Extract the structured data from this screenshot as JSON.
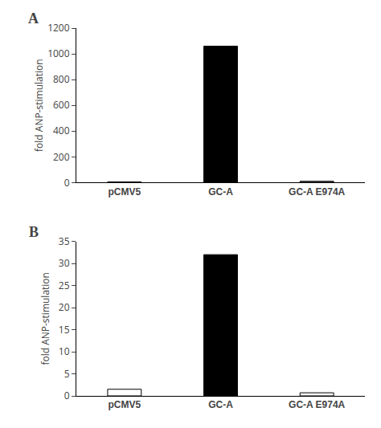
{
  "chart_data": [
    {
      "type": "bar",
      "title": "A",
      "categories": [
        "pCMV5",
        "GC-A",
        "GC-A E974A"
      ],
      "values": [
        5,
        1060,
        10
      ],
      "colors": [
        "#555555",
        "black",
        "#555555"
      ],
      "ylabel": "fold ANP-stimulation",
      "ylim": [
        0,
        1200
      ],
      "yticks": [
        0,
        200,
        400,
        600,
        800,
        1000,
        1200
      ],
      "grid": false
    },
    {
      "type": "bar",
      "title": "B",
      "categories": [
        "pCMV5",
        "GC-A",
        "GC-A E974A"
      ],
      "values": [
        1.5,
        32,
        0.7
      ],
      "colors": [
        "white",
        "black",
        "white"
      ],
      "ylabel": "fold ANP-stimulation",
      "ylim": [
        0,
        35
      ],
      "yticks": [
        0,
        5,
        10,
        15,
        20,
        25,
        30,
        35
      ],
      "grid": false
    }
  ]
}
